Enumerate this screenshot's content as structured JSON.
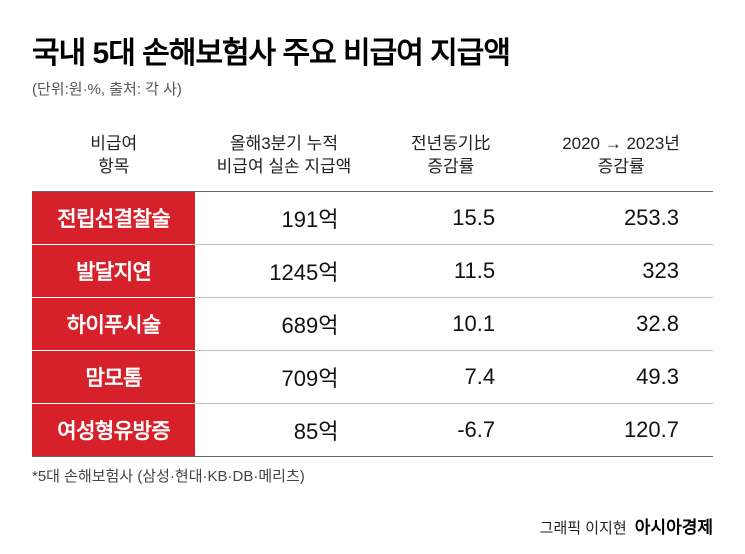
{
  "title": "국내 5대 손해보험사 주요 비급여 지급액",
  "subtitle": "(단위:원·%, 출처: 각 사)",
  "columns": {
    "category": "비급여\n항목",
    "amount": "올해3분기 누적\n비급여 실손 지급액",
    "yoy": "전년동기比\n증감률",
    "growth3y": "2020 → 2023년\n증감률"
  },
  "rows": [
    {
      "category": "전립선결찰술",
      "amount": "191억",
      "yoy": "15.5",
      "growth3y": "253.3"
    },
    {
      "category": "발달지연",
      "amount": "1245억",
      "yoy": "11.5",
      "growth3y": "323"
    },
    {
      "category": "하이푸시술",
      "amount": "689억",
      "yoy": "10.1",
      "growth3y": "32.8"
    },
    {
      "category": "맘모톰",
      "amount": "709억",
      "yoy": "7.4",
      "growth3y": "49.3"
    },
    {
      "category": "여성형유방증",
      "amount": "85억",
      "yoy": "-6.7",
      "growth3y": "120.7"
    }
  ],
  "footnote": "*5대 손해보험사 (삼성·현대·KB·DB·메리츠)",
  "credit_prefix": "그래픽 이지현",
  "credit_brand": "아시아경제",
  "colors": {
    "category_bg": "#d6202a",
    "category_fg": "#ffffff",
    "text": "#111111",
    "border_strong": "#666666",
    "border_light": "#bbbbbb"
  },
  "font_sizes": {
    "title": 30,
    "subtitle": 15,
    "header": 17,
    "cell": 22,
    "footnote": 15,
    "credit": 15
  }
}
